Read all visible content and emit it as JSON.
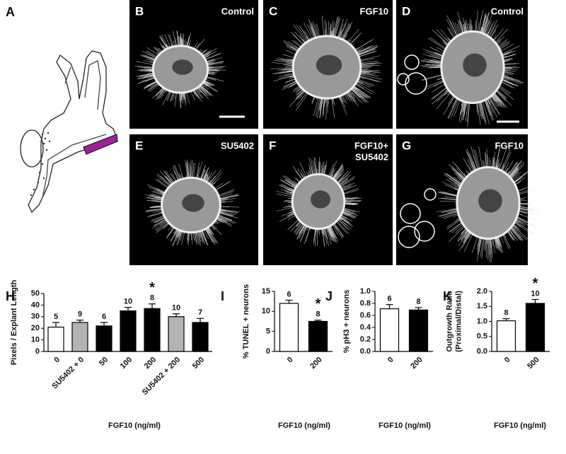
{
  "diagram": {
    "letter": "A"
  },
  "images": [
    {
      "letter": "B",
      "label": [
        "Control"
      ]
    },
    {
      "letter": "C",
      "label": [
        "FGF10"
      ]
    },
    {
      "letter": "D",
      "label": [
        "Control"
      ]
    },
    {
      "letter": "E",
      "label": [
        "SU5402"
      ]
    },
    {
      "letter": "F",
      "label": [
        "FGF10+",
        "SU5402"
      ]
    },
    {
      "letter": "G",
      "label": [
        "FGF10"
      ]
    }
  ],
  "chart_data": [
    {
      "type": "bar",
      "panel_label": "H",
      "ylabel": [
        "Pixels / Explant Length"
      ],
      "xlabel": "FGF10 (ng/ml)",
      "categories": [
        "0",
        "SU5402 + 0",
        "50",
        "100",
        "200",
        "SU5402 + 200",
        "500"
      ],
      "values": [
        21,
        25,
        22,
        35,
        37,
        30,
        25
      ],
      "errors": [
        4,
        2,
        3,
        3,
        4,
        2.5,
        3.5
      ],
      "n_labels": [
        "5",
        "9",
        "6",
        "10",
        "8",
        "10",
        "7"
      ],
      "colors": [
        "#ffffff",
        "#b3b3b3",
        "#000000",
        "#000000",
        "#000000",
        "#b3b3b3",
        "#000000"
      ],
      "annotations": [
        {
          "index": 4,
          "text": "*"
        }
      ],
      "ylim": [
        0,
        50
      ],
      "yticks": [
        0,
        10,
        20,
        30,
        40,
        50
      ]
    },
    {
      "type": "bar",
      "panel_label": "I",
      "ylabel": [
        "% TUNEL + neurons"
      ],
      "xlabel": "FGF10 (ng/ml)",
      "categories": [
        "0",
        "200"
      ],
      "values": [
        12,
        7.5
      ],
      "errors": [
        0.8,
        0.3
      ],
      "n_labels": [
        "6",
        "8"
      ],
      "colors": [
        "#ffffff",
        "#000000"
      ],
      "annotations": [
        {
          "index": 1,
          "text": "*"
        }
      ],
      "ylim": [
        0,
        15
      ],
      "yticks": [
        0,
        5,
        10,
        15
      ]
    },
    {
      "type": "bar",
      "panel_label": "J",
      "ylabel": [
        "% pH3 + neurons"
      ],
      "xlabel": "FGF10 (ng/ml)",
      "categories": [
        "0",
        "200"
      ],
      "values": [
        0.71,
        0.69
      ],
      "errors": [
        0.07,
        0.04
      ],
      "n_labels": [
        "6",
        "8"
      ],
      "colors": [
        "#ffffff",
        "#000000"
      ],
      "annotations": [],
      "ylim": [
        0,
        1.0
      ],
      "yticks": [
        {
          "value": 0,
          "label": "0.0"
        },
        0.2,
        0.4,
        0.6,
        0.8,
        {
          "value": 1.0,
          "label": "1.0"
        }
      ]
    },
    {
      "type": "bar",
      "panel_label": "K",
      "ylabel": [
        "Outgrowth Ratio",
        "(Proximal/Distal)"
      ],
      "xlabel": "FGF10 (ng/ml)",
      "categories": [
        "0",
        "500"
      ],
      "values": [
        1.02,
        1.6
      ],
      "errors": [
        0.07,
        0.13
      ],
      "n_labels": [
        "8",
        "10"
      ],
      "colors": [
        "#ffffff",
        "#000000"
      ],
      "annotations": [
        {
          "index": 1,
          "text": "*"
        }
      ],
      "ylim": [
        0,
        2.0
      ],
      "yticks": [
        {
          "value": 0,
          "label": "0.0"
        },
        0.5,
        {
          "value": 1.0,
          "label": "1.0"
        },
        1.5,
        {
          "value": 2.0,
          "label": "2.0"
        }
      ]
    }
  ]
}
